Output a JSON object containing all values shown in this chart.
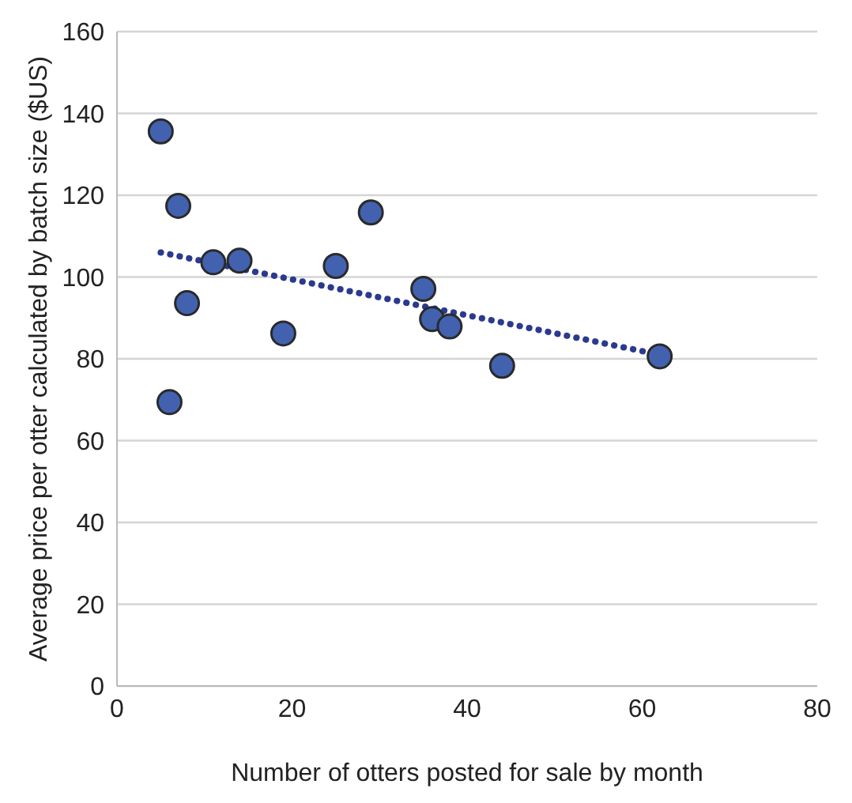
{
  "chart_data": {
    "type": "scatter",
    "xlabel": "Number of otters posted for sale by month",
    "ylabel": "Average price per otter  calculated by batch size ($US)",
    "xlim": [
      0,
      80
    ],
    "xticks": [
      0,
      20,
      40,
      60,
      80
    ],
    "ylim": [
      0,
      160
    ],
    "yticks": [
      0,
      20,
      40,
      60,
      80,
      100,
      120,
      140,
      160
    ],
    "grid": "y",
    "marker": "circle",
    "series": [
      {
        "type": "scatter",
        "color": "#4262b0",
        "x": [
          5,
          7,
          6,
          8,
          11,
          14,
          19,
          25,
          29,
          35,
          36,
          38,
          44,
          62
        ],
        "values": [
          135.6,
          117.4,
          69.4,
          93.6,
          103.6,
          104,
          86.2,
          102.7,
          115.8,
          97.1,
          89.7,
          87.9,
          78.3,
          80.6
        ]
      },
      {
        "type": "line",
        "color": "#2b3a8f",
        "line_style": "dotted",
        "marker": "none",
        "x": [
          5,
          62
        ],
        "values": [
          106,
          81
        ]
      }
    ]
  }
}
